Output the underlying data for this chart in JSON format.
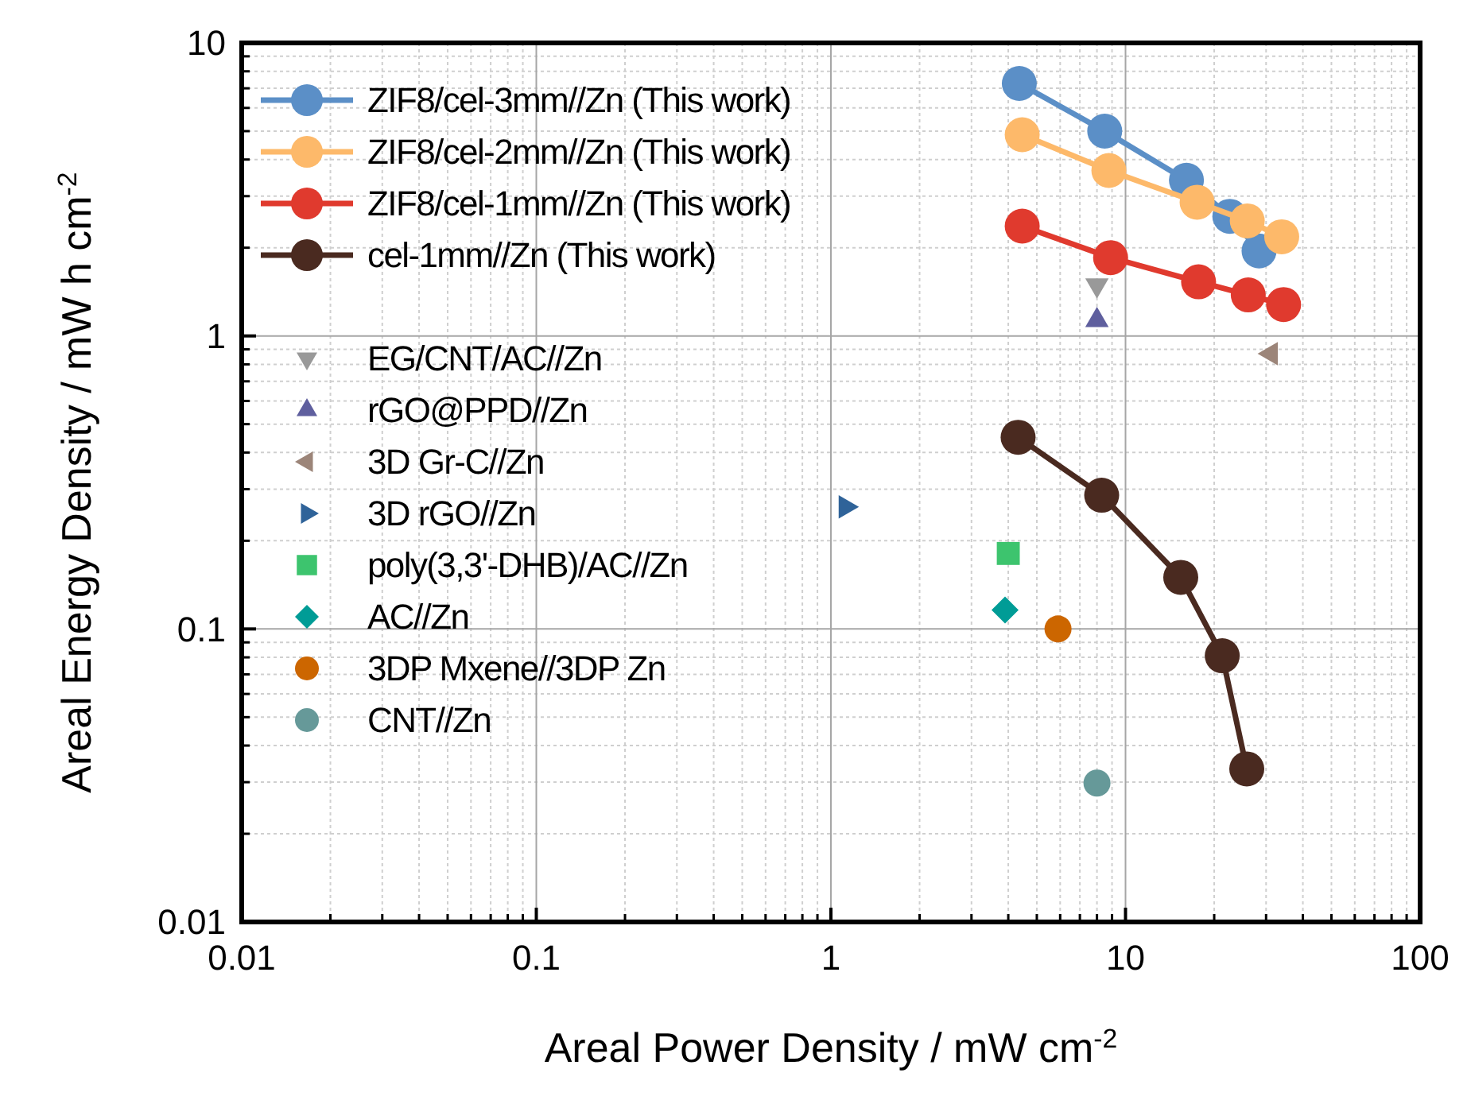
{
  "chart_data": {
    "type": "scatter",
    "xlabel": "Areal Power Density / mW cm$^{-2}$",
    "ylabel": "Areal Energy Density / mW h cm$^{-2}$",
    "log": "xy",
    "grid": true,
    "legend": "top left",
    "xlim": [
      0.01,
      100
    ],
    "xticks": [
      0.01,
      0.1,
      1,
      10,
      100
    ],
    "ylim": [
      0.01,
      10
    ],
    "yticks": [
      0.01,
      0.1,
      1,
      10
    ],
    "series": [
      {
        "name": "ZIF8/cel-3mm//Zn (This work)",
        "type": "line",
        "marker": "circle",
        "color": "#5b8fc7",
        "x": [
          4.36,
          8.5,
          16.1,
          22.6,
          28.4
        ],
        "values": [
          7.27,
          5.0,
          3.4,
          2.56,
          1.95
        ]
      },
      {
        "name": "ZIF8/cel-2mm//Zn (This work)",
        "type": "line",
        "marker": "circle",
        "color": "#fdb96a",
        "x": [
          4.46,
          8.78,
          17.5,
          25.9,
          33.9
        ],
        "values": [
          4.86,
          3.67,
          2.86,
          2.47,
          2.18
        ]
      },
      {
        "name": "ZIF8/cel-1mm//Zn (This work)",
        "type": "line",
        "marker": "circle",
        "color": "#e03a2e",
        "x": [
          4.46,
          8.9,
          17.7,
          26.1,
          34.4
        ],
        "values": [
          2.37,
          1.85,
          1.53,
          1.38,
          1.28
        ]
      },
      {
        "name": "cel-1mm//Zn (This work)",
        "type": "line",
        "marker": "circle",
        "color": "#4a2a20",
        "x": [
          4.32,
          8.3,
          15.4,
          21.3,
          25.8
        ],
        "values": [
          0.451,
          0.286,
          0.15,
          0.081,
          0.0333
        ]
      },
      {
        "name": "EG/CNT/AC//Zn",
        "type": "scatter",
        "marker": "triangle-down",
        "color": "#999999",
        "x": [
          8.0
        ],
        "values": [
          1.49
        ]
      },
      {
        "name": "rGO@PPD//Zn",
        "type": "scatter",
        "marker": "triangle",
        "color": "#5f5f9e",
        "x": [
          8.0
        ],
        "values": [
          1.13
        ]
      },
      {
        "name": "3D Gr-C//Zn",
        "type": "scatter",
        "marker": "triangle-left",
        "color": "#9c8579",
        "x": [
          31.2
        ],
        "values": [
          0.87
        ]
      },
      {
        "name": "3D rGO//Zn",
        "type": "scatter",
        "marker": "triangle-right",
        "color": "#2f6399",
        "x": [
          1.12
        ],
        "values": [
          0.261
        ]
      },
      {
        "name": "poly(3,3'-DHB)/AC//Zn",
        "type": "scatter",
        "marker": "square",
        "color": "#3dc46e",
        "x": [
          4.0
        ],
        "values": [
          0.181
        ]
      },
      {
        "name": "AC//Zn",
        "type": "scatter",
        "marker": "diamond",
        "color": "#009c96",
        "x": [
          3.9
        ],
        "values": [
          0.116
        ]
      },
      {
        "name": "3DP Mxene//3DP Zn",
        "type": "scatter",
        "color": "#cc6600",
        "x": [
          5.9
        ],
        "values": [
          0.1
        ]
      },
      {
        "name": "CNT//Zn",
        "type": "scatter",
        "color": "#669999",
        "x": [
          8.0
        ],
        "values": [
          0.0298
        ]
      }
    ]
  }
}
